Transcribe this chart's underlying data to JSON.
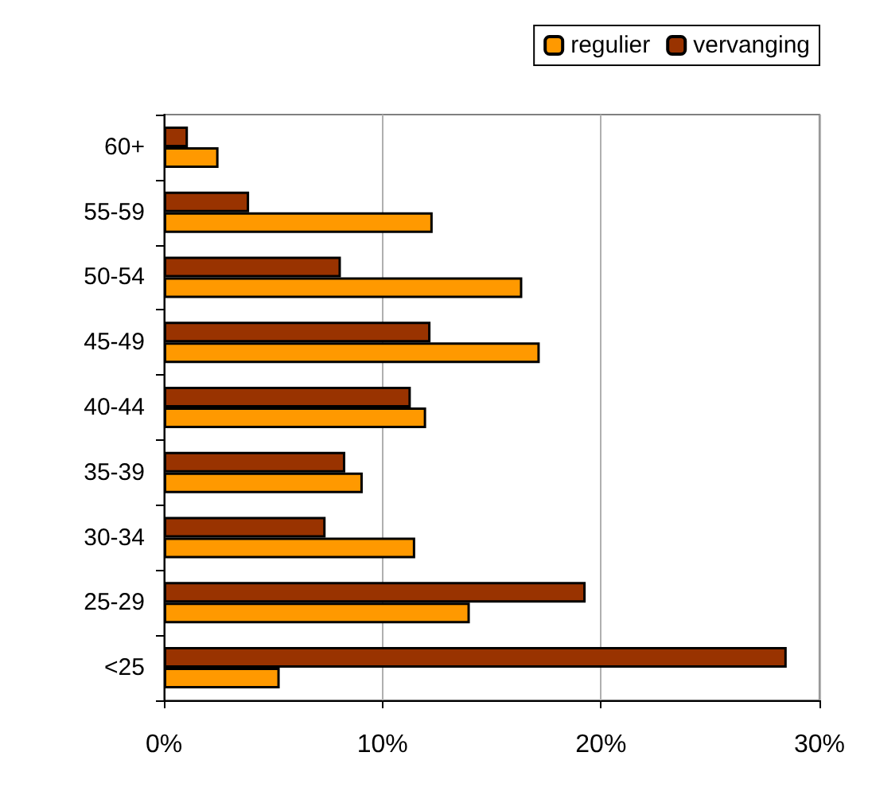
{
  "chart_data": {
    "type": "bar",
    "orientation": "horizontal",
    "categories": [
      "60+",
      "55-59",
      "50-54",
      "45-49",
      "40-44",
      "35-39",
      "30-34",
      "25-29",
      "<25"
    ],
    "series": [
      {
        "name": "regulier",
        "color": "#ff9900",
        "values": [
          2.5,
          12.3,
          16.4,
          17.2,
          12.0,
          9.1,
          11.5,
          14.0,
          5.3
        ]
      },
      {
        "name": "vervanging",
        "color": "#993300",
        "values": [
          1.1,
          3.9,
          8.1,
          12.2,
          11.3,
          8.3,
          7.4,
          19.3,
          28.5
        ]
      }
    ],
    "xlim": [
      0,
      30
    ],
    "xticks": [
      {
        "value": 0,
        "label": "0%"
      },
      {
        "value": 10,
        "label": "10%"
      },
      {
        "value": 20,
        "label": "20%"
      },
      {
        "value": 30,
        "label": "30%"
      }
    ],
    "grid": "x",
    "legend": "top right"
  }
}
